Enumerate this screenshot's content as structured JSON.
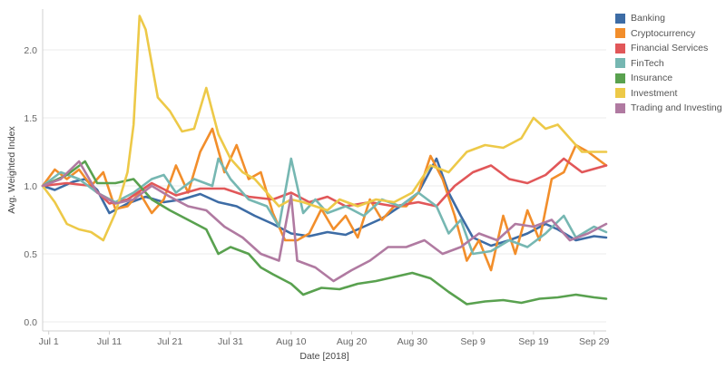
{
  "chart_data": {
    "type": "line",
    "title": "",
    "xlabel": "Date [2018]",
    "ylabel": "Avg. Weighted Index",
    "ylim": [
      0.0,
      2.3
    ],
    "xlim": [
      "2018-07-01",
      "2018-10-02"
    ],
    "grid": "horizontal",
    "legend_position": "right",
    "x_ticks": [
      {
        "label": "Jul 1",
        "date": "2018-07-02"
      },
      {
        "label": "Jul 11",
        "date": "2018-07-12"
      },
      {
        "label": "Jul 21",
        "date": "2018-07-22"
      },
      {
        "label": "Jul 31",
        "date": "2018-08-01"
      },
      {
        "label": "Aug 10",
        "date": "2018-08-11"
      },
      {
        "label": "Aug 20",
        "date": "2018-08-21"
      },
      {
        "label": "Aug 30",
        "date": "2018-08-31"
      },
      {
        "label": "Sep 9",
        "date": "2018-09-10"
      },
      {
        "label": "Sep 19",
        "date": "2018-09-20"
      },
      {
        "label": "Sep 29",
        "date": "2018-09-30"
      }
    ],
    "y_ticks": [
      {
        "label": "0.0",
        "value": 0.0
      },
      {
        "label": "0.5",
        "value": 0.5
      },
      {
        "label": "1.0",
        "value": 1.0
      },
      {
        "label": "1.5",
        "value": 1.5
      },
      {
        "label": "2.0",
        "value": 2.0
      }
    ],
    "series": [
      {
        "name": "Banking",
        "color": "#3d6ca5",
        "points": [
          [
            "2018-07-01",
            1.0
          ],
          [
            "2018-07-03",
            0.97
          ],
          [
            "2018-07-06",
            1.03
          ],
          [
            "2018-07-08",
            1.05
          ],
          [
            "2018-07-10",
            0.97
          ],
          [
            "2018-07-12",
            0.8
          ],
          [
            "2018-07-15",
            0.87
          ],
          [
            "2018-07-18",
            0.92
          ],
          [
            "2018-07-21",
            0.88
          ],
          [
            "2018-07-24",
            0.9
          ],
          [
            "2018-07-27",
            0.94
          ],
          [
            "2018-07-30",
            0.88
          ],
          [
            "2018-08-02",
            0.85
          ],
          [
            "2018-08-05",
            0.78
          ],
          [
            "2018-08-08",
            0.72
          ],
          [
            "2018-08-11",
            0.65
          ],
          [
            "2018-08-14",
            0.63
          ],
          [
            "2018-08-17",
            0.66
          ],
          [
            "2018-08-20",
            0.64
          ],
          [
            "2018-08-23",
            0.7
          ],
          [
            "2018-08-26",
            0.76
          ],
          [
            "2018-08-29",
            0.85
          ],
          [
            "2018-09-01",
            0.95
          ],
          [
            "2018-09-04",
            1.2
          ],
          [
            "2018-09-06",
            0.95
          ],
          [
            "2018-09-08",
            0.78
          ],
          [
            "2018-09-10",
            0.62
          ],
          [
            "2018-09-13",
            0.56
          ],
          [
            "2018-09-16",
            0.6
          ],
          [
            "2018-09-19",
            0.65
          ],
          [
            "2018-09-22",
            0.72
          ],
          [
            "2018-09-24",
            0.68
          ],
          [
            "2018-09-27",
            0.6
          ],
          [
            "2018-09-30",
            0.63
          ],
          [
            "2018-10-02",
            0.62
          ]
        ]
      },
      {
        "name": "Cryptocurrency",
        "color": "#f28e2b",
        "points": [
          [
            "2018-07-01",
            1.0
          ],
          [
            "2018-07-03",
            1.12
          ],
          [
            "2018-07-05",
            1.05
          ],
          [
            "2018-07-07",
            1.12
          ],
          [
            "2018-07-09",
            1.0
          ],
          [
            "2018-07-11",
            1.1
          ],
          [
            "2018-07-13",
            0.83
          ],
          [
            "2018-07-15",
            0.85
          ],
          [
            "2018-07-17",
            0.95
          ],
          [
            "2018-07-19",
            0.8
          ],
          [
            "2018-07-21",
            0.9
          ],
          [
            "2018-07-23",
            1.15
          ],
          [
            "2018-07-25",
            0.95
          ],
          [
            "2018-07-27",
            1.25
          ],
          [
            "2018-07-29",
            1.42
          ],
          [
            "2018-07-31",
            1.1
          ],
          [
            "2018-08-02",
            1.3
          ],
          [
            "2018-08-04",
            1.05
          ],
          [
            "2018-08-06",
            1.1
          ],
          [
            "2018-08-08",
            0.8
          ],
          [
            "2018-08-10",
            0.6
          ],
          [
            "2018-08-12",
            0.6
          ],
          [
            "2018-08-14",
            0.65
          ],
          [
            "2018-08-16",
            0.83
          ],
          [
            "2018-08-18",
            0.68
          ],
          [
            "2018-08-20",
            0.78
          ],
          [
            "2018-08-22",
            0.62
          ],
          [
            "2018-08-24",
            0.9
          ],
          [
            "2018-08-26",
            0.75
          ],
          [
            "2018-08-28",
            0.85
          ],
          [
            "2018-08-30",
            0.85
          ],
          [
            "2018-09-01",
            0.95
          ],
          [
            "2018-09-03",
            1.22
          ],
          [
            "2018-09-05",
            1.05
          ],
          [
            "2018-09-07",
            0.78
          ],
          [
            "2018-09-09",
            0.45
          ],
          [
            "2018-09-11",
            0.6
          ],
          [
            "2018-09-13",
            0.38
          ],
          [
            "2018-09-15",
            0.78
          ],
          [
            "2018-09-17",
            0.5
          ],
          [
            "2018-09-19",
            0.82
          ],
          [
            "2018-09-21",
            0.6
          ],
          [
            "2018-09-23",
            1.05
          ],
          [
            "2018-09-25",
            1.1
          ],
          [
            "2018-09-27",
            1.3
          ],
          [
            "2018-09-29",
            1.25
          ],
          [
            "2018-10-02",
            1.15
          ]
        ]
      },
      {
        "name": "Financial Services",
        "color": "#e15759",
        "points": [
          [
            "2018-07-01",
            1.0
          ],
          [
            "2018-07-05",
            1.02
          ],
          [
            "2018-07-09",
            1.0
          ],
          [
            "2018-07-12",
            0.87
          ],
          [
            "2018-07-15",
            0.9
          ],
          [
            "2018-07-19",
            1.02
          ],
          [
            "2018-07-23",
            0.93
          ],
          [
            "2018-07-27",
            0.98
          ],
          [
            "2018-07-31",
            0.98
          ],
          [
            "2018-08-04",
            0.92
          ],
          [
            "2018-08-08",
            0.9
          ],
          [
            "2018-08-11",
            0.95
          ],
          [
            "2018-08-14",
            0.88
          ],
          [
            "2018-08-17",
            0.92
          ],
          [
            "2018-08-20",
            0.85
          ],
          [
            "2018-08-24",
            0.88
          ],
          [
            "2018-08-28",
            0.85
          ],
          [
            "2018-09-01",
            0.88
          ],
          [
            "2018-09-04",
            0.85
          ],
          [
            "2018-09-07",
            1.0
          ],
          [
            "2018-09-10",
            1.1
          ],
          [
            "2018-09-13",
            1.15
          ],
          [
            "2018-09-16",
            1.05
          ],
          [
            "2018-09-19",
            1.02
          ],
          [
            "2018-09-22",
            1.08
          ],
          [
            "2018-09-25",
            1.2
          ],
          [
            "2018-09-28",
            1.1
          ],
          [
            "2018-10-02",
            1.15
          ]
        ]
      },
      {
        "name": "FinTech",
        "color": "#76b7b2",
        "points": [
          [
            "2018-07-01",
            1.0
          ],
          [
            "2018-07-04",
            1.1
          ],
          [
            "2018-07-07",
            1.05
          ],
          [
            "2018-07-10",
            0.95
          ],
          [
            "2018-07-13",
            0.88
          ],
          [
            "2018-07-16",
            0.95
          ],
          [
            "2018-07-19",
            1.05
          ],
          [
            "2018-07-21",
            1.08
          ],
          [
            "2018-07-23",
            0.95
          ],
          [
            "2018-07-26",
            1.05
          ],
          [
            "2018-07-29",
            1.0
          ],
          [
            "2018-07-30",
            1.2
          ],
          [
            "2018-08-01",
            1.05
          ],
          [
            "2018-08-04",
            0.9
          ],
          [
            "2018-08-07",
            0.85
          ],
          [
            "2018-08-09",
            0.7
          ],
          [
            "2018-08-11",
            1.2
          ],
          [
            "2018-08-13",
            0.8
          ],
          [
            "2018-08-15",
            0.9
          ],
          [
            "2018-08-17",
            0.8
          ],
          [
            "2018-08-20",
            0.85
          ],
          [
            "2018-08-23",
            0.78
          ],
          [
            "2018-08-26",
            0.9
          ],
          [
            "2018-08-29",
            0.85
          ],
          [
            "2018-09-01",
            0.95
          ],
          [
            "2018-09-04",
            0.85
          ],
          [
            "2018-09-06",
            0.65
          ],
          [
            "2018-09-08",
            0.75
          ],
          [
            "2018-09-10",
            0.5
          ],
          [
            "2018-09-13",
            0.52
          ],
          [
            "2018-09-16",
            0.6
          ],
          [
            "2018-09-19",
            0.55
          ],
          [
            "2018-09-22",
            0.65
          ],
          [
            "2018-09-25",
            0.78
          ],
          [
            "2018-09-27",
            0.62
          ],
          [
            "2018-09-30",
            0.7
          ],
          [
            "2018-10-02",
            0.66
          ]
        ]
      },
      {
        "name": "Insurance",
        "color": "#59a14f",
        "points": [
          [
            "2018-07-01",
            1.0
          ],
          [
            "2018-07-05",
            1.08
          ],
          [
            "2018-07-08",
            1.18
          ],
          [
            "2018-07-10",
            1.02
          ],
          [
            "2018-07-13",
            1.02
          ],
          [
            "2018-07-16",
            1.05
          ],
          [
            "2018-07-19",
            0.9
          ],
          [
            "2018-07-22",
            0.82
          ],
          [
            "2018-07-25",
            0.75
          ],
          [
            "2018-07-28",
            0.68
          ],
          [
            "2018-07-30",
            0.5
          ],
          [
            "2018-08-01",
            0.55
          ],
          [
            "2018-08-04",
            0.5
          ],
          [
            "2018-08-06",
            0.4
          ],
          [
            "2018-08-08",
            0.35
          ],
          [
            "2018-08-11",
            0.28
          ],
          [
            "2018-08-13",
            0.2
          ],
          [
            "2018-08-16",
            0.25
          ],
          [
            "2018-08-19",
            0.24
          ],
          [
            "2018-08-22",
            0.28
          ],
          [
            "2018-08-25",
            0.3
          ],
          [
            "2018-08-28",
            0.33
          ],
          [
            "2018-08-31",
            0.36
          ],
          [
            "2018-09-03",
            0.32
          ],
          [
            "2018-09-06",
            0.22
          ],
          [
            "2018-09-09",
            0.13
          ],
          [
            "2018-09-12",
            0.15
          ],
          [
            "2018-09-15",
            0.16
          ],
          [
            "2018-09-18",
            0.14
          ],
          [
            "2018-09-21",
            0.17
          ],
          [
            "2018-09-24",
            0.18
          ],
          [
            "2018-09-27",
            0.2
          ],
          [
            "2018-09-30",
            0.18
          ],
          [
            "2018-10-02",
            0.17
          ]
        ]
      },
      {
        "name": "Investment",
        "color": "#edc948",
        "points": [
          [
            "2018-07-01",
            1.0
          ],
          [
            "2018-07-03",
            0.88
          ],
          [
            "2018-07-05",
            0.72
          ],
          [
            "2018-07-07",
            0.68
          ],
          [
            "2018-07-09",
            0.66
          ],
          [
            "2018-07-11",
            0.6
          ],
          [
            "2018-07-13",
            0.8
          ],
          [
            "2018-07-15",
            1.1
          ],
          [
            "2018-07-16",
            1.45
          ],
          [
            "2018-07-17",
            2.25
          ],
          [
            "2018-07-18",
            2.15
          ],
          [
            "2018-07-20",
            1.65
          ],
          [
            "2018-07-22",
            1.55
          ],
          [
            "2018-07-24",
            1.4
          ],
          [
            "2018-07-26",
            1.42
          ],
          [
            "2018-07-28",
            1.72
          ],
          [
            "2018-07-30",
            1.38
          ],
          [
            "2018-08-01",
            1.2
          ],
          [
            "2018-08-03",
            1.1
          ],
          [
            "2018-08-05",
            1.05
          ],
          [
            "2018-08-07",
            0.95
          ],
          [
            "2018-08-09",
            0.85
          ],
          [
            "2018-08-11",
            0.9
          ],
          [
            "2018-08-13",
            0.88
          ],
          [
            "2018-08-15",
            0.85
          ],
          [
            "2018-08-17",
            0.82
          ],
          [
            "2018-08-19",
            0.9
          ],
          [
            "2018-08-22",
            0.85
          ],
          [
            "2018-08-25",
            0.9
          ],
          [
            "2018-08-28",
            0.88
          ],
          [
            "2018-08-31",
            0.95
          ],
          [
            "2018-09-03",
            1.15
          ],
          [
            "2018-09-06",
            1.1
          ],
          [
            "2018-09-09",
            1.25
          ],
          [
            "2018-09-12",
            1.3
          ],
          [
            "2018-09-15",
            1.28
          ],
          [
            "2018-09-18",
            1.35
          ],
          [
            "2018-09-20",
            1.5
          ],
          [
            "2018-09-22",
            1.42
          ],
          [
            "2018-09-24",
            1.45
          ],
          [
            "2018-09-26",
            1.35
          ],
          [
            "2018-09-28",
            1.25
          ],
          [
            "2018-10-02",
            1.25
          ]
        ]
      },
      {
        "name": "Trading and Investing",
        "color": "#b07aa1",
        "points": [
          [
            "2018-07-01",
            1.0
          ],
          [
            "2018-07-04",
            1.05
          ],
          [
            "2018-07-07",
            1.18
          ],
          [
            "2018-07-10",
            0.95
          ],
          [
            "2018-07-13",
            0.87
          ],
          [
            "2018-07-16",
            0.9
          ],
          [
            "2018-07-19",
            1.0
          ],
          [
            "2018-07-22",
            0.92
          ],
          [
            "2018-07-25",
            0.85
          ],
          [
            "2018-07-28",
            0.82
          ],
          [
            "2018-07-31",
            0.7
          ],
          [
            "2018-08-03",
            0.62
          ],
          [
            "2018-08-06",
            0.5
          ],
          [
            "2018-08-09",
            0.45
          ],
          [
            "2018-08-11",
            0.93
          ],
          [
            "2018-08-12",
            0.45
          ],
          [
            "2018-08-15",
            0.4
          ],
          [
            "2018-08-18",
            0.3
          ],
          [
            "2018-08-21",
            0.38
          ],
          [
            "2018-08-24",
            0.45
          ],
          [
            "2018-08-27",
            0.55
          ],
          [
            "2018-08-30",
            0.55
          ],
          [
            "2018-09-02",
            0.6
          ],
          [
            "2018-09-05",
            0.5
          ],
          [
            "2018-09-08",
            0.55
          ],
          [
            "2018-09-11",
            0.65
          ],
          [
            "2018-09-14",
            0.6
          ],
          [
            "2018-09-17",
            0.72
          ],
          [
            "2018-09-20",
            0.7
          ],
          [
            "2018-09-23",
            0.75
          ],
          [
            "2018-09-26",
            0.6
          ],
          [
            "2018-09-29",
            0.65
          ],
          [
            "2018-10-02",
            0.72
          ]
        ]
      }
    ]
  }
}
